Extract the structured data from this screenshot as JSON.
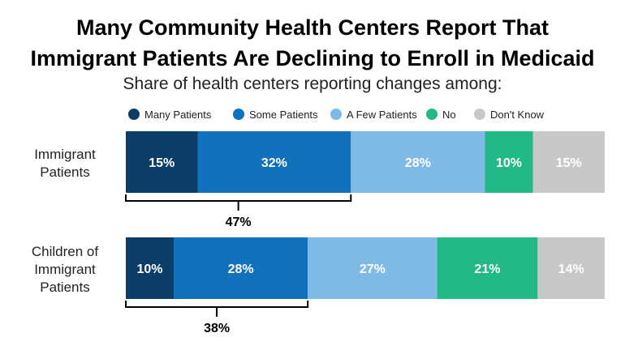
{
  "chart_data": {
    "type": "bar",
    "orientation": "horizontal",
    "stacked": true,
    "title_line1": "Many Community Health Centers Report That",
    "title_line2": "Immigrant Patients Are Declining to Enroll in Medicaid",
    "subtitle": "Share of health centers reporting changes among:",
    "legend_position": "top",
    "categories": [
      {
        "line1": "Immigrant",
        "line2": "Patients",
        "line3": ""
      },
      {
        "line1": "Children of",
        "line2": "Immigrant",
        "line3": "Patients"
      }
    ],
    "series": [
      {
        "name": "Many Patients",
        "color": "#0b3d66",
        "values": [
          15,
          10
        ],
        "labels": [
          "15%",
          "10%"
        ]
      },
      {
        "name": "Some Patients",
        "color": "#1271bb",
        "values": [
          32,
          28
        ],
        "labels": [
          "32%",
          "28%"
        ]
      },
      {
        "name": "A Few Patients",
        "color": "#7fb9e6",
        "values": [
          28,
          27
        ],
        "labels": [
          "28%",
          "27%"
        ]
      },
      {
        "name": "No",
        "color": "#23b987",
        "values": [
          10,
          21
        ],
        "labels": [
          "10%",
          "21%"
        ]
      },
      {
        "name": "Don't Know",
        "color": "#c8c8c8",
        "values": [
          15,
          14
        ],
        "labels": [
          "15%",
          "14%"
        ]
      }
    ],
    "brackets": [
      {
        "value": 47,
        "label": "47%"
      },
      {
        "value": 38,
        "label": "38%"
      }
    ],
    "xlim": [
      0,
      100
    ],
    "grid": false
  }
}
